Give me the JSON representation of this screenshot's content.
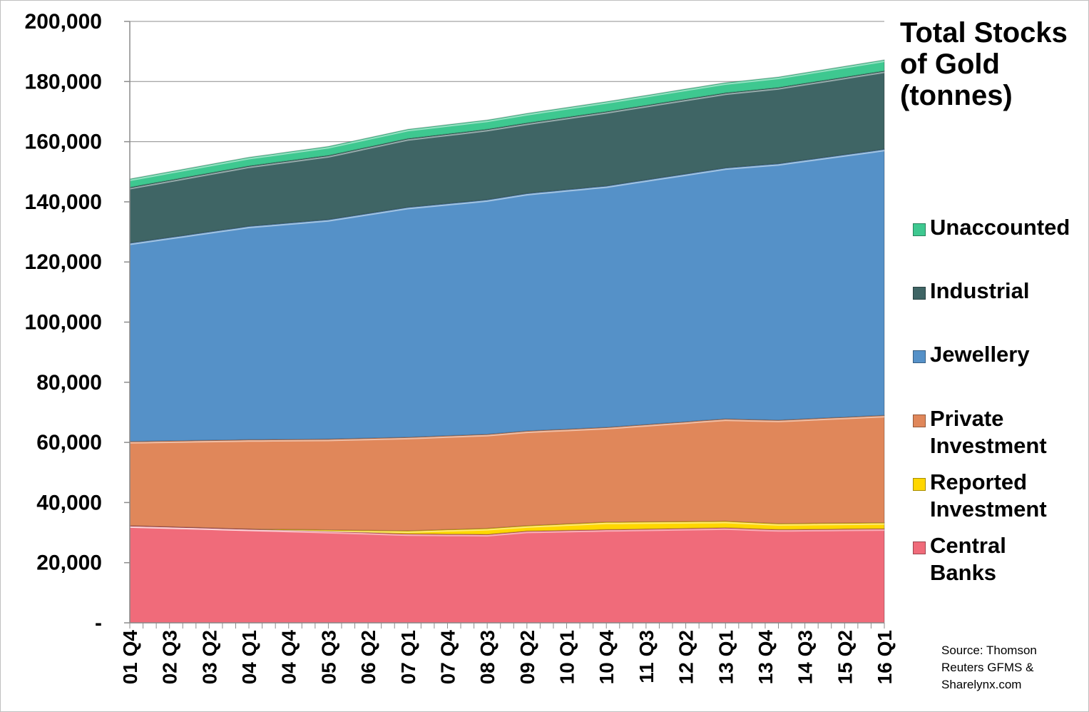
{
  "chart_data": {
    "type": "area",
    "stacked": true,
    "title": "Total Stocks\nof Gold\n(tonnes)",
    "xlabel": "",
    "ylabel": "",
    "ylim": [
      0,
      200000
    ],
    "ytick_labels": [
      "-",
      "20,000",
      "40,000",
      "60,000",
      "80,000",
      "100,000",
      "120,000",
      "140,000",
      "160,000",
      "180,000",
      "200,000"
    ],
    "x_tick_labels": [
      "01 Q4",
      "02 Q3",
      "03 Q2",
      "04 Q1",
      "04 Q4",
      "05 Q3",
      "06 Q2",
      "07 Q1",
      "07 Q4",
      "08 Q3",
      "09 Q2",
      "10 Q1",
      "10 Q4",
      "11 Q3",
      "12 Q2",
      "13 Q1",
      "13 Q4",
      "14 Q3",
      "15 Q2",
      "16 Q1"
    ],
    "x_points": 58,
    "source": "Source: Thomson\nReuters GFMS &\nSharelynx.com",
    "legend_position": "right",
    "series": [
      {
        "name": "Central\nBanks",
        "color": "#f06b7a",
        "knots": [
          [
            0,
            32300
          ],
          [
            9,
            31200
          ],
          [
            15,
            30400
          ],
          [
            21,
            29600
          ],
          [
            27,
            29400
          ],
          [
            30,
            30500
          ],
          [
            36,
            31000
          ],
          [
            45,
            31600
          ],
          [
            49,
            31000
          ],
          [
            57,
            31300
          ]
        ]
      },
      {
        "name": "Reported\nInvestment",
        "color": "#ffd700",
        "knots": [
          [
            0,
            0
          ],
          [
            9,
            0
          ],
          [
            15,
            500
          ],
          [
            21,
            1000
          ],
          [
            27,
            2000
          ],
          [
            30,
            1800
          ],
          [
            36,
            2500
          ],
          [
            45,
            2200
          ],
          [
            49,
            2000
          ],
          [
            57,
            2000
          ]
        ]
      },
      {
        "name": "Private\nInvestment",
        "color": "#e0875a",
        "knots": [
          [
            0,
            28000
          ],
          [
            9,
            29700
          ],
          [
            15,
            30200
          ],
          [
            21,
            31100
          ],
          [
            27,
            31300
          ],
          [
            30,
            31500
          ],
          [
            36,
            31500
          ],
          [
            45,
            34000
          ],
          [
            49,
            34400
          ],
          [
            57,
            35700
          ]
        ]
      },
      {
        "name": "Jewellery",
        "color": "#5591c8",
        "knots": [
          [
            0,
            66000
          ],
          [
            9,
            71000
          ],
          [
            15,
            73000
          ],
          [
            21,
            76500
          ],
          [
            27,
            78000
          ],
          [
            30,
            79000
          ],
          [
            36,
            80300
          ],
          [
            45,
            83500
          ],
          [
            49,
            85300
          ],
          [
            57,
            88500
          ]
        ]
      },
      {
        "name": "Industrial",
        "color": "#3f6565",
        "knots": [
          [
            0,
            18500
          ],
          [
            9,
            20000
          ],
          [
            15,
            21300
          ],
          [
            21,
            22800
          ],
          [
            27,
            23400
          ],
          [
            30,
            23400
          ],
          [
            36,
            24700
          ],
          [
            45,
            24900
          ],
          [
            49,
            25300
          ],
          [
            57,
            26000
          ]
        ]
      },
      {
        "name": "Unaccounted",
        "color": "#3ec890",
        "knots": [
          [
            0,
            2800
          ],
          [
            9,
            2900
          ],
          [
            15,
            3000
          ],
          [
            21,
            3100
          ],
          [
            27,
            3100
          ],
          [
            30,
            3200
          ],
          [
            36,
            3300
          ],
          [
            45,
            3400
          ],
          [
            49,
            3500
          ],
          [
            57,
            3700
          ]
        ]
      }
    ]
  }
}
